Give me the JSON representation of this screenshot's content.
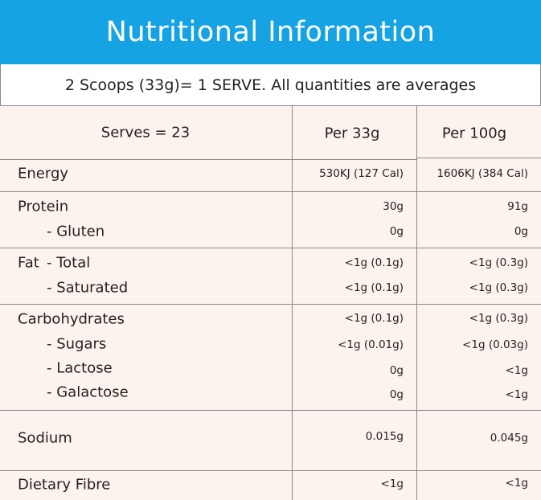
{
  "title": "Nutritional Information",
  "subtitle": "2 Scoops (33g)= 1 SERVE. All quantities are averages",
  "header": {
    "serves": "Serves = 23",
    "col1": "Per 33g",
    "col2": "Per 100g"
  },
  "rows": [
    {
      "label": "Energy",
      "per33": "530KJ (127 Cal)",
      "per100": "1606KJ (384 Cal)"
    },
    {
      "label": "Protein",
      "per33": "30g",
      "per100": "91g"
    },
    {
      "label": "- Gluten",
      "per33": "0g",
      "per100": "0g"
    },
    {
      "label": "Fat",
      "sub": "- Total",
      "per33": "<1g (0.1g)",
      "per100": "<1g (0.3g)"
    },
    {
      "label": "- Saturated",
      "per33": "<1g (0.1g)",
      "per100": "<1g (0.3g)"
    },
    {
      "label": "Carbohydrates",
      "per33": "<1g (0.1g)",
      "per100": "<1g (0.3g)"
    },
    {
      "label": "- Sugars",
      "per33": "<1g (0.01g)",
      "per100": "<1g (0.03g)"
    },
    {
      "label": "- Lactose",
      "per33": "0g",
      "per100": "<1g"
    },
    {
      "label": "- Galactose",
      "per33": "0g",
      "per100": "<1g"
    },
    {
      "label": "Sodium",
      "per33": "0.015g",
      "per100": "0.045g"
    },
    {
      "label": "Dietary Fibre",
      "per33": "<1g",
      "per100": "<1g"
    }
  ],
  "colors": {
    "header_bg": "#15a3e4",
    "table_bg": "#fdf3ee"
  }
}
